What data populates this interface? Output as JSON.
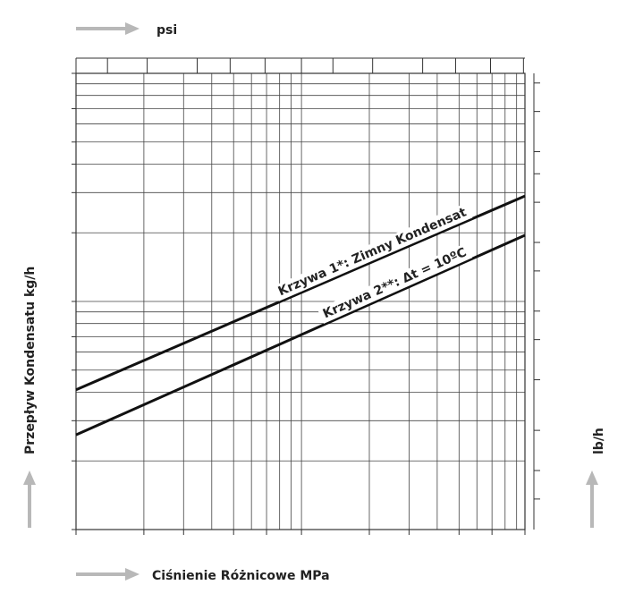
{
  "chart_data": {
    "type": "line",
    "x_scale": "log",
    "y_scale": "log",
    "grid": true,
    "xlim": [
      0.01,
      0.98
    ],
    "ylim": [
      10,
      1000
    ],
    "xlabel": "Ciśnienie Różnicowe MPa",
    "ylabel": "Przepływ Kondensatu kg/h",
    "x_top_label": "psi",
    "y_right_label": "lb/h",
    "x_ticks": [
      "0,01",
      "0,02",
      "0,03",
      "0,05",
      "0,07",
      "0,1",
      "0,2",
      "0,3",
      "0,5",
      "0,7",
      "0,98"
    ],
    "x_tick_values": [
      0.01,
      0.02,
      0.03,
      0.05,
      0.07,
      0.1,
      0.2,
      0.3,
      0.5,
      0.7,
      0.98
    ],
    "x_top_ticks": [
      "1.45",
      "2",
      "3",
      "5",
      "7",
      "10",
      "14.5",
      "20",
      "30",
      "50",
      "70",
      "100",
      "140"
    ],
    "x_top_tick_values": [
      1.45,
      2,
      3,
      5,
      7,
      10,
      14.5,
      20,
      30,
      50,
      70,
      100,
      140
    ],
    "y_ticks": [
      "10",
      "20",
      "30",
      "50",
      "70",
      "100",
      "200",
      "300",
      "400",
      "500",
      "700",
      "1000"
    ],
    "y_tick_values": [
      10,
      20,
      30,
      50,
      70,
      100,
      200,
      300,
      400,
      500,
      700,
      1000
    ],
    "y_right_ticks": [
      "30",
      "40",
      "60",
      "100",
      "150",
      "200",
      "300",
      "400",
      "600",
      "800",
      "1000",
      "1500",
      "2000"
    ],
    "y_right_tick_values": [
      30,
      40,
      60,
      100,
      150,
      200,
      300,
      400,
      600,
      800,
      1000,
      1500,
      2000
    ],
    "series": [
      {
        "name": "Krzywa 1*: Zimny Kondensat",
        "x": [
          0.01,
          0.98
        ],
        "y": [
          41,
          290
        ]
      },
      {
        "name": "Krzywa 2**: Δt = 10ºC",
        "x": [
          0.01,
          0.98
        ],
        "y": [
          26,
          195
        ]
      }
    ]
  }
}
